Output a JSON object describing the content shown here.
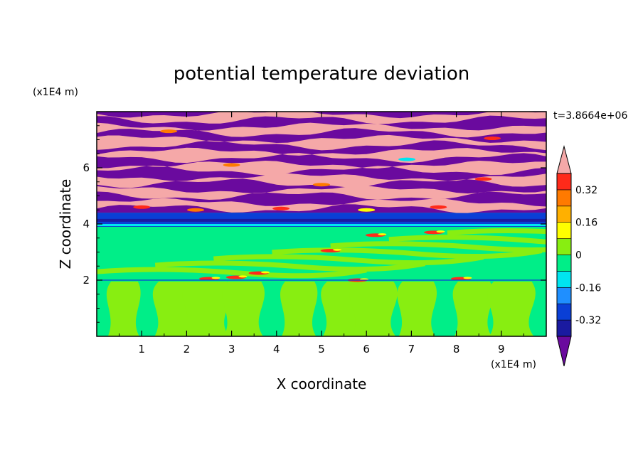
{
  "chart_data": {
    "type": "heatmap",
    "title": "potential temperature deviation",
    "xlabel": "X coordinate",
    "ylabel": "Z coordinate",
    "x_unit": "(x1E4 m)",
    "y_unit": "(x1E4 m)",
    "time_label": "t=3.8664e+06",
    "xlim": [
      0,
      10
    ],
    "ylim": [
      0,
      8
    ],
    "x_ticks": [
      "1",
      "2",
      "3",
      "4",
      "5",
      "6",
      "7",
      "8",
      "9"
    ],
    "x_tick_values": [
      1,
      2,
      3,
      4,
      5,
      6,
      7,
      8,
      9
    ],
    "y_ticks": [
      "2",
      "4",
      "6"
    ],
    "y_tick_values": [
      2,
      4,
      6
    ],
    "colorbar": {
      "labels": [
        "0.32",
        "0.16",
        "0",
        "-0.16",
        "-0.32"
      ],
      "label_values": [
        0.32,
        0.16,
        0,
        -0.16,
        -0.32
      ],
      "levels": [
        -0.4,
        -0.32,
        -0.24,
        -0.16,
        -0.08,
        0,
        0.08,
        0.16,
        0.24,
        0.32,
        0.4
      ],
      "colors": [
        "#6a0a9e",
        "#1a1aa0",
        "#0a3fd6",
        "#1f8fff",
        "#00e5f0",
        "#00ee88",
        "#88ee11",
        "#ffff00",
        "#ffb000",
        "#ff7a00",
        "#ff2a1a",
        "#f5a8a8"
      ],
      "extend": "both"
    },
    "regions": [
      {
        "z_range": [
          0,
          2
        ],
        "description": "alternating green (0 to 0.08) and sea-green (-0.08 to 0) plumes"
      },
      {
        "z_range": [
          2,
          3.9
        ],
        "description": "mostly sea-green with green streaks, thin red/orange filaments near z=2"
      },
      {
        "z_range": [
          3.9,
          4.4
        ],
        "description": "blue / dark-blue band (-0.32 to -0.16)"
      },
      {
        "z_range": [
          4.4,
          8
        ],
        "description": "alternating pink (>0.4) and purple (<-0.4) layers"
      }
    ]
  }
}
